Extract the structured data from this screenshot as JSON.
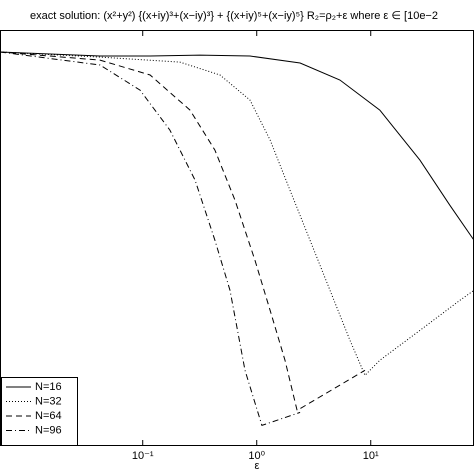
{
  "chart_data": {
    "type": "line",
    "title": "exact solution: (x²+y²) {(x+iy)³+(x−iy)³} + {(x+iy)⁵+(x−iy)⁵}   R₂=ρ₂+ε   where ε ∈ [10e−2",
    "xlabel": "ε",
    "xscale": "log",
    "yscale": "log",
    "xlim": [
      0.0056,
      80.5
    ],
    "ylim": [
      8e-08,
      1.17
    ],
    "xticks": [
      {
        "value": 0.1,
        "label": "10⁻¹"
      },
      {
        "value": 1,
        "label": "10⁰"
      },
      {
        "value": 10,
        "label": "10¹"
      }
    ],
    "legend": "lower left",
    "series": [
      {
        "name": "N=16",
        "color": "#000000",
        "dash": "solid",
        "x": [
          0.0056,
          0.0154,
          0.0422,
          0.116,
          0.318,
          0.873,
          2.4,
          5.37,
          12.0,
          27.0,
          49.5,
          80.5
        ],
        "values": [
          0.489,
          0.451,
          0.417,
          0.417,
          0.433,
          0.417,
          0.316,
          0.161,
          0.0489,
          0.00671,
          0.00112,
          0.00028
        ]
      },
      {
        "name": "N=32",
        "color": "#000000",
        "dash": "dotted",
        "x": [
          0.0056,
          0.0422,
          0.212,
          0.476,
          0.873,
          1.31,
          1.96,
          2.93,
          4.39,
          6.58,
          8.91,
          12.0,
          27.0,
          60.6,
          80.5
        ],
        "values": [
          0.489,
          0.4,
          0.328,
          0.196,
          0.0727,
          0.0149,
          0.00204,
          0.00028,
          3.85e-05,
          5.28e-06,
          1.32e-06,
          2.39e-06,
          7.85e-06,
          2.59e-05,
          3.85e-05
        ]
      },
      {
        "name": "N=64",
        "color": "#000000",
        "dash": "dashed",
        "x": [
          0.0056,
          0.0422,
          0.116,
          0.26,
          0.43,
          0.645,
          0.966,
          1.31,
          1.77,
          2.26,
          8.91
        ],
        "values": [
          0.489,
          0.355,
          0.196,
          0.0489,
          0.00998,
          0.00137,
          0.000126,
          1.74e-05,
          2.39e-06,
          3.28e-07,
          1.61e-06
        ]
      },
      {
        "name": "N=96",
        "color": "#000000",
        "dash": "dashdot",
        "x": [
          0.0056,
          0.0422,
          0.0946,
          0.173,
          0.288,
          0.43,
          0.583,
          0.789,
          1.11,
          2.4
        ],
        "values": [
          0.489,
          0.292,
          0.108,
          0.0221,
          0.00303,
          0.00028,
          3.85e-05,
          1.61e-06,
          1.81e-07,
          3.03e-07
        ]
      }
    ]
  }
}
